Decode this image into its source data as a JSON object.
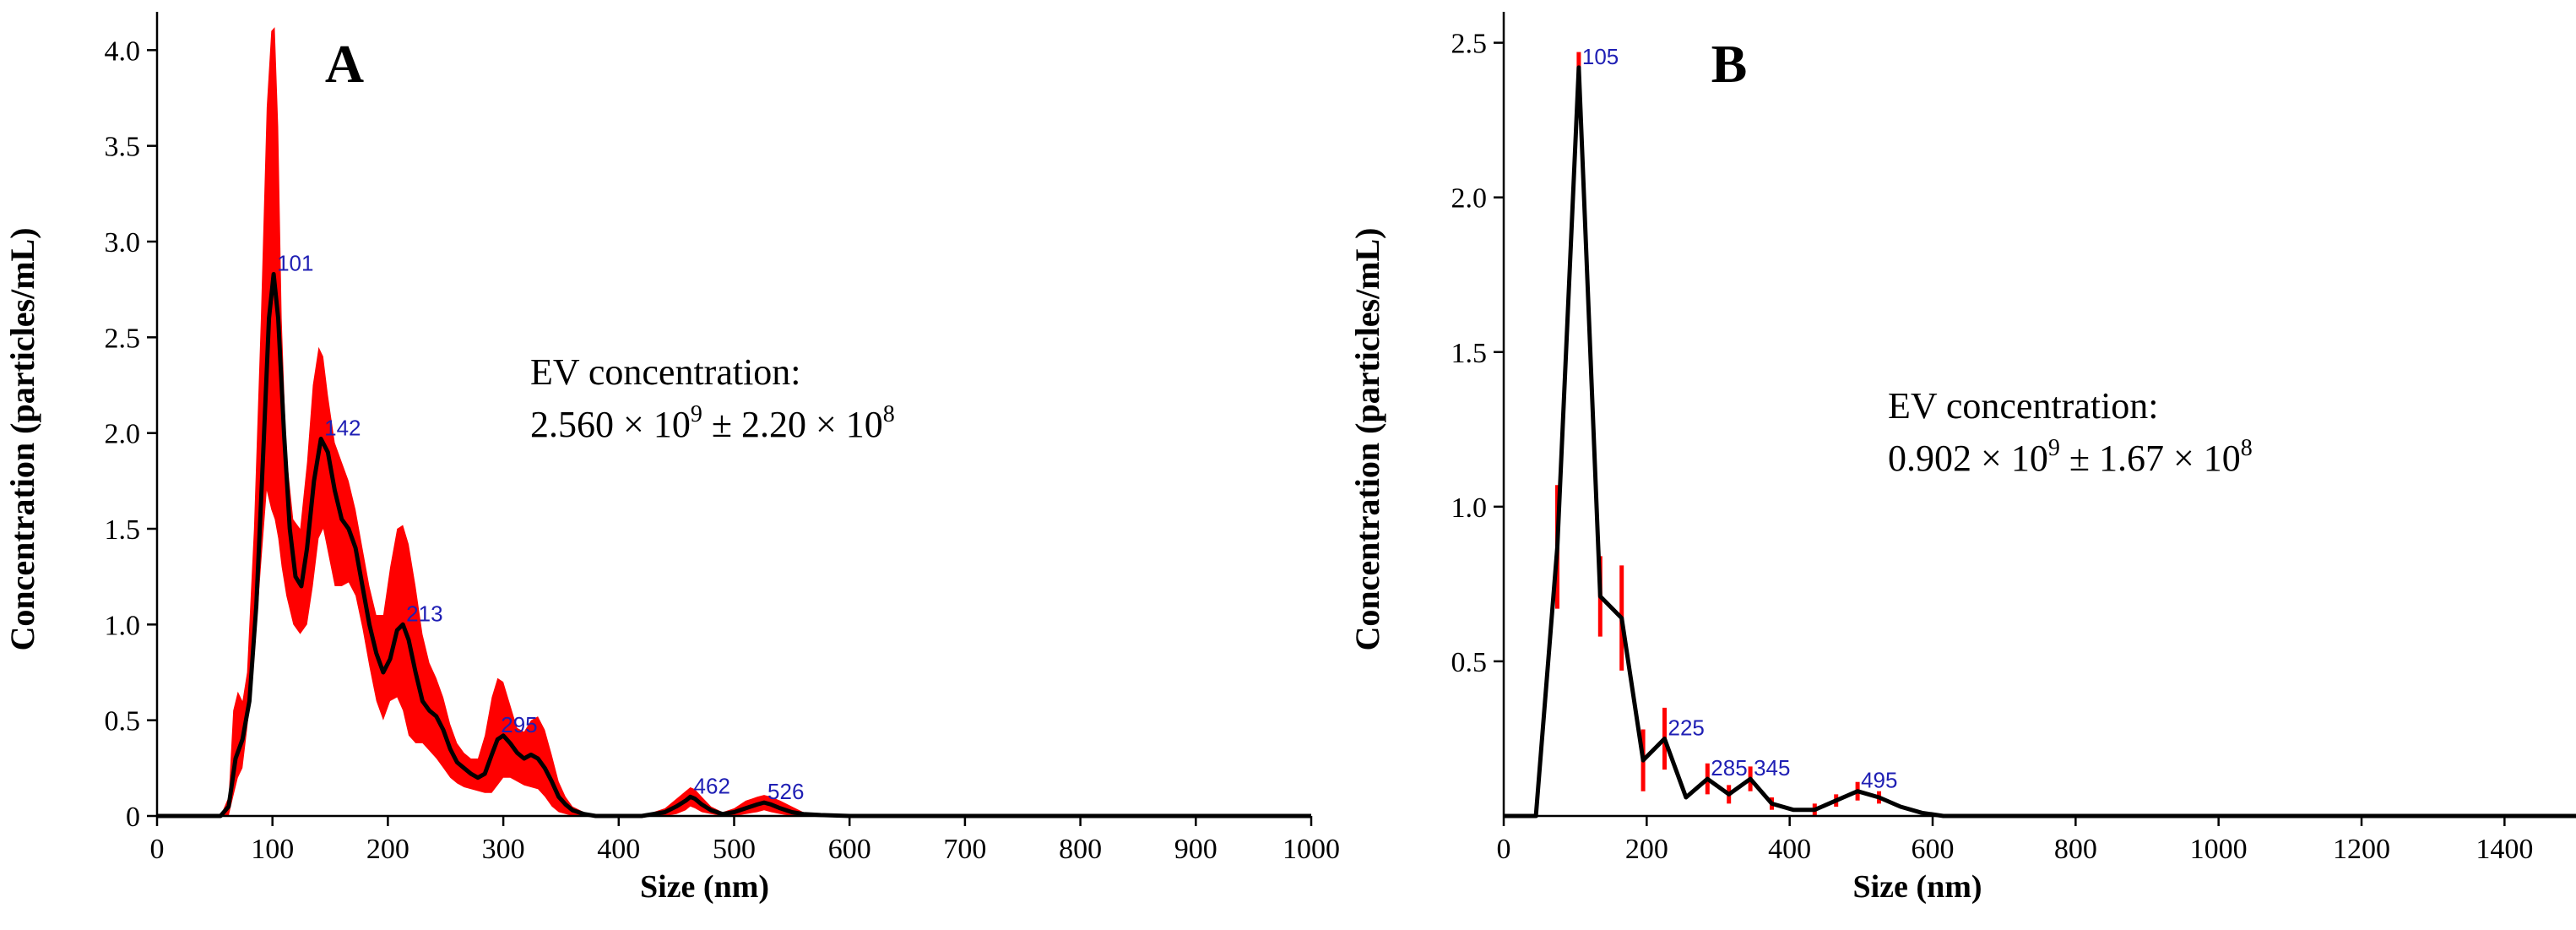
{
  "chart_data": [
    {
      "panel": "A",
      "type": "line",
      "title": "",
      "panel_letter": "A",
      "xlabel": "Size (nm)",
      "ylabel": "Concentration (particles/mL)",
      "xlim": [
        0,
        1000
      ],
      "ylim": [
        0,
        4.2
      ],
      "x_ticks": [
        0,
        100,
        200,
        300,
        400,
        500,
        600,
        700,
        800,
        900,
        1000
      ],
      "y_ticks": [
        0,
        0.5,
        1.0,
        1.5,
        2.0,
        2.5,
        3.0,
        3.5,
        4.0
      ],
      "y_tick_labels": [
        "0",
        "0.5",
        "1.0",
        "1.5",
        "2.0",
        "2.5",
        "3.0",
        "3.5",
        "4.0"
      ],
      "annotation": {
        "line1": "EV concentration:",
        "mantissa": "2.560 × 10",
        "exp1": "9",
        "pm": " ± 2.20 × 10",
        "exp2": "8"
      },
      "series": [
        {
          "name": "mean",
          "color": "#000000",
          "x": [
            0,
            55,
            62,
            68,
            74,
            80,
            86,
            92,
            97,
            101,
            105,
            110,
            115,
            120,
            125,
            130,
            136,
            142,
            148,
            154,
            160,
            166,
            172,
            178,
            184,
            190,
            196,
            202,
            208,
            213,
            218,
            224,
            230,
            236,
            242,
            248,
            254,
            260,
            266,
            272,
            278,
            284,
            290,
            295,
            300,
            306,
            312,
            318,
            324,
            330,
            336,
            342,
            348,
            354,
            360,
            370,
            380,
            390,
            400,
            420,
            440,
            450,
            458,
            462,
            466,
            472,
            480,
            490,
            500,
            510,
            520,
            526,
            532,
            540,
            550,
            560,
            575,
            600,
            650,
            700,
            800,
            900,
            1000
          ],
          "y": [
            0,
            0,
            0.05,
            0.3,
            0.4,
            0.6,
            1.1,
            1.9,
            2.6,
            2.83,
            2.6,
            2.0,
            1.5,
            1.25,
            1.2,
            1.4,
            1.75,
            1.97,
            1.9,
            1.7,
            1.55,
            1.5,
            1.4,
            1.2,
            1.0,
            0.85,
            0.75,
            0.82,
            0.97,
            1.0,
            0.92,
            0.75,
            0.6,
            0.55,
            0.52,
            0.45,
            0.35,
            0.28,
            0.25,
            0.22,
            0.2,
            0.22,
            0.32,
            0.4,
            0.42,
            0.38,
            0.33,
            0.3,
            0.32,
            0.3,
            0.25,
            0.18,
            0.1,
            0.06,
            0.03,
            0.01,
            0.0,
            0.0,
            0.0,
            0.0,
            0.02,
            0.05,
            0.08,
            0.1,
            0.09,
            0.06,
            0.03,
            0.01,
            0.02,
            0.04,
            0.06,
            0.07,
            0.06,
            0.04,
            0.02,
            0.01,
            0.005,
            0.0,
            0.0,
            0.0,
            0.0,
            0.0,
            0.0
          ]
        },
        {
          "name": "error-band",
          "color": "#ff0000",
          "x": [
            0,
            55,
            62,
            66,
            70,
            74,
            78,
            84,
            90,
            95,
            99,
            102,
            105,
            108,
            112,
            118,
            124,
            130,
            135,
            140,
            144,
            148,
            154,
            160,
            166,
            172,
            178,
            184,
            190,
            196,
            202,
            208,
            213,
            218,
            224,
            230,
            236,
            242,
            248,
            254,
            260,
            266,
            272,
            278,
            284,
            290,
            295,
            300,
            306,
            312,
            318,
            324,
            330,
            336,
            342,
            348,
            354,
            360,
            370,
            380,
            390,
            400,
            420,
            440,
            450,
            458,
            462,
            466,
            472,
            480,
            490,
            500,
            510,
            520,
            526,
            532,
            540,
            550,
            560,
            575,
            600,
            650,
            700,
            800,
            900,
            1000
          ],
          "upper": [
            0,
            0,
            0.1,
            0.55,
            0.65,
            0.6,
            0.75,
            1.5,
            2.6,
            3.7,
            4.1,
            4.12,
            3.6,
            2.6,
            1.9,
            1.55,
            1.5,
            1.85,
            2.25,
            2.45,
            2.4,
            2.2,
            1.95,
            1.85,
            1.75,
            1.6,
            1.4,
            1.2,
            1.05,
            1.05,
            1.3,
            1.5,
            1.52,
            1.42,
            1.2,
            0.95,
            0.8,
            0.72,
            0.62,
            0.48,
            0.38,
            0.33,
            0.3,
            0.3,
            0.42,
            0.62,
            0.72,
            0.7,
            0.58,
            0.46,
            0.44,
            0.5,
            0.52,
            0.45,
            0.32,
            0.18,
            0.1,
            0.05,
            0.02,
            0.0,
            0.0,
            0.0,
            0.0,
            0.04,
            0.09,
            0.13,
            0.15,
            0.14,
            0.1,
            0.05,
            0.02,
            0.04,
            0.08,
            0.1,
            0.11,
            0.1,
            0.08,
            0.05,
            0.02,
            0.01,
            0.0,
            0.0,
            0.0,
            0.0,
            0.0,
            0.0
          ],
          "lower": [
            0,
            0,
            0.0,
            0.1,
            0.2,
            0.25,
            0.45,
            0.8,
            1.3,
            1.7,
            1.6,
            1.55,
            1.45,
            1.3,
            1.15,
            1.0,
            0.95,
            1.0,
            1.2,
            1.45,
            1.5,
            1.38,
            1.2,
            1.2,
            1.22,
            1.15,
            0.98,
            0.78,
            0.6,
            0.5,
            0.6,
            0.62,
            0.55,
            0.42,
            0.38,
            0.38,
            0.34,
            0.3,
            0.25,
            0.2,
            0.17,
            0.15,
            0.14,
            0.13,
            0.12,
            0.12,
            0.16,
            0.2,
            0.2,
            0.18,
            0.16,
            0.15,
            0.14,
            0.1,
            0.05,
            0.02,
            0.01,
            0.0,
            0.0,
            0.0,
            0.0,
            0.0,
            0.0,
            0.0,
            0.01,
            0.03,
            0.05,
            0.04,
            0.02,
            0.01,
            0.0,
            0.0,
            0.01,
            0.02,
            0.03,
            0.02,
            0.01,
            0.0,
            0.0,
            0.0,
            0.0,
            0.0,
            0.0,
            0.0,
            0.0,
            0.0
          ]
        }
      ],
      "peak_labels": [
        {
          "x": 101,
          "y": 2.83,
          "text": "101"
        },
        {
          "x": 142,
          "y": 1.97,
          "text": "142"
        },
        {
          "x": 213,
          "y": 1.0,
          "text": "213"
        },
        {
          "x": 295,
          "y": 0.42,
          "text": "295"
        },
        {
          "x": 462,
          "y": 0.1,
          "text": "462"
        },
        {
          "x": 526,
          "y": 0.07,
          "text": "526"
        }
      ]
    },
    {
      "panel": "B",
      "type": "line",
      "title": "",
      "panel_letter": "B",
      "xlabel": "Size (nm)",
      "ylabel": "Concentration (particles/mL)",
      "xlim": [
        0,
        1500
      ],
      "ylim": [
        0,
        2.6
      ],
      "x_ticks": [
        0,
        200,
        400,
        600,
        800,
        1000,
        1200,
        1400
      ],
      "y_ticks": [
        0.5,
        1.0,
        1.5,
        2.0,
        2.5
      ],
      "y_tick_labels": [
        "0.5",
        "1.0",
        "1.5",
        "2.0",
        "2.5"
      ],
      "annotation": {
        "line1": "EV concentration:",
        "mantissa": "0.902 × 10",
        "exp1": "9",
        "pm": " ± 1.67 × 10",
        "exp2": "8"
      },
      "series": [
        {
          "name": "mean",
          "color": "#000000",
          "x": [
            0,
            45,
            75,
            105,
            135,
            165,
            195,
            225,
            255,
            285,
            315,
            345,
            375,
            405,
            435,
            465,
            495,
            525,
            555,
            585,
            615,
            700,
            900,
            1100,
            1300,
            1500
          ],
          "y": [
            0,
            0,
            0.87,
            2.42,
            0.71,
            0.64,
            0.18,
            0.25,
            0.06,
            0.12,
            0.07,
            0.12,
            0.04,
            0.02,
            0.02,
            0.05,
            0.08,
            0.06,
            0.03,
            0.01,
            0.0,
            0.0,
            0.0,
            0.0,
            0.0,
            0.0
          ]
        }
      ],
      "error_bars": [
        {
          "x": 75,
          "y": 0.87,
          "err": 0.2
        },
        {
          "x": 105,
          "y": 2.42,
          "err": 0.05
        },
        {
          "x": 135,
          "y": 0.71,
          "err": 0.13
        },
        {
          "x": 165,
          "y": 0.64,
          "err": 0.17
        },
        {
          "x": 195,
          "y": 0.18,
          "err": 0.1
        },
        {
          "x": 225,
          "y": 0.25,
          "err": 0.1
        },
        {
          "x": 285,
          "y": 0.12,
          "err": 0.05
        },
        {
          "x": 315,
          "y": 0.07,
          "err": 0.03
        },
        {
          "x": 345,
          "y": 0.12,
          "err": 0.04
        },
        {
          "x": 375,
          "y": 0.04,
          "err": 0.02
        },
        {
          "x": 435,
          "y": 0.02,
          "err": 0.02
        },
        {
          "x": 465,
          "y": 0.05,
          "err": 0.02
        },
        {
          "x": 495,
          "y": 0.08,
          "err": 0.03
        },
        {
          "x": 525,
          "y": 0.06,
          "err": 0.02
        }
      ],
      "peak_labels": [
        {
          "x": 105,
          "y": 2.42,
          "text": "105"
        },
        {
          "x": 225,
          "y": 0.25,
          "text": "225"
        },
        {
          "x": 285,
          "y": 0.12,
          "text": "285"
        },
        {
          "x": 345,
          "y": 0.12,
          "text": "345"
        },
        {
          "x": 495,
          "y": 0.08,
          "text": "495"
        }
      ]
    }
  ]
}
